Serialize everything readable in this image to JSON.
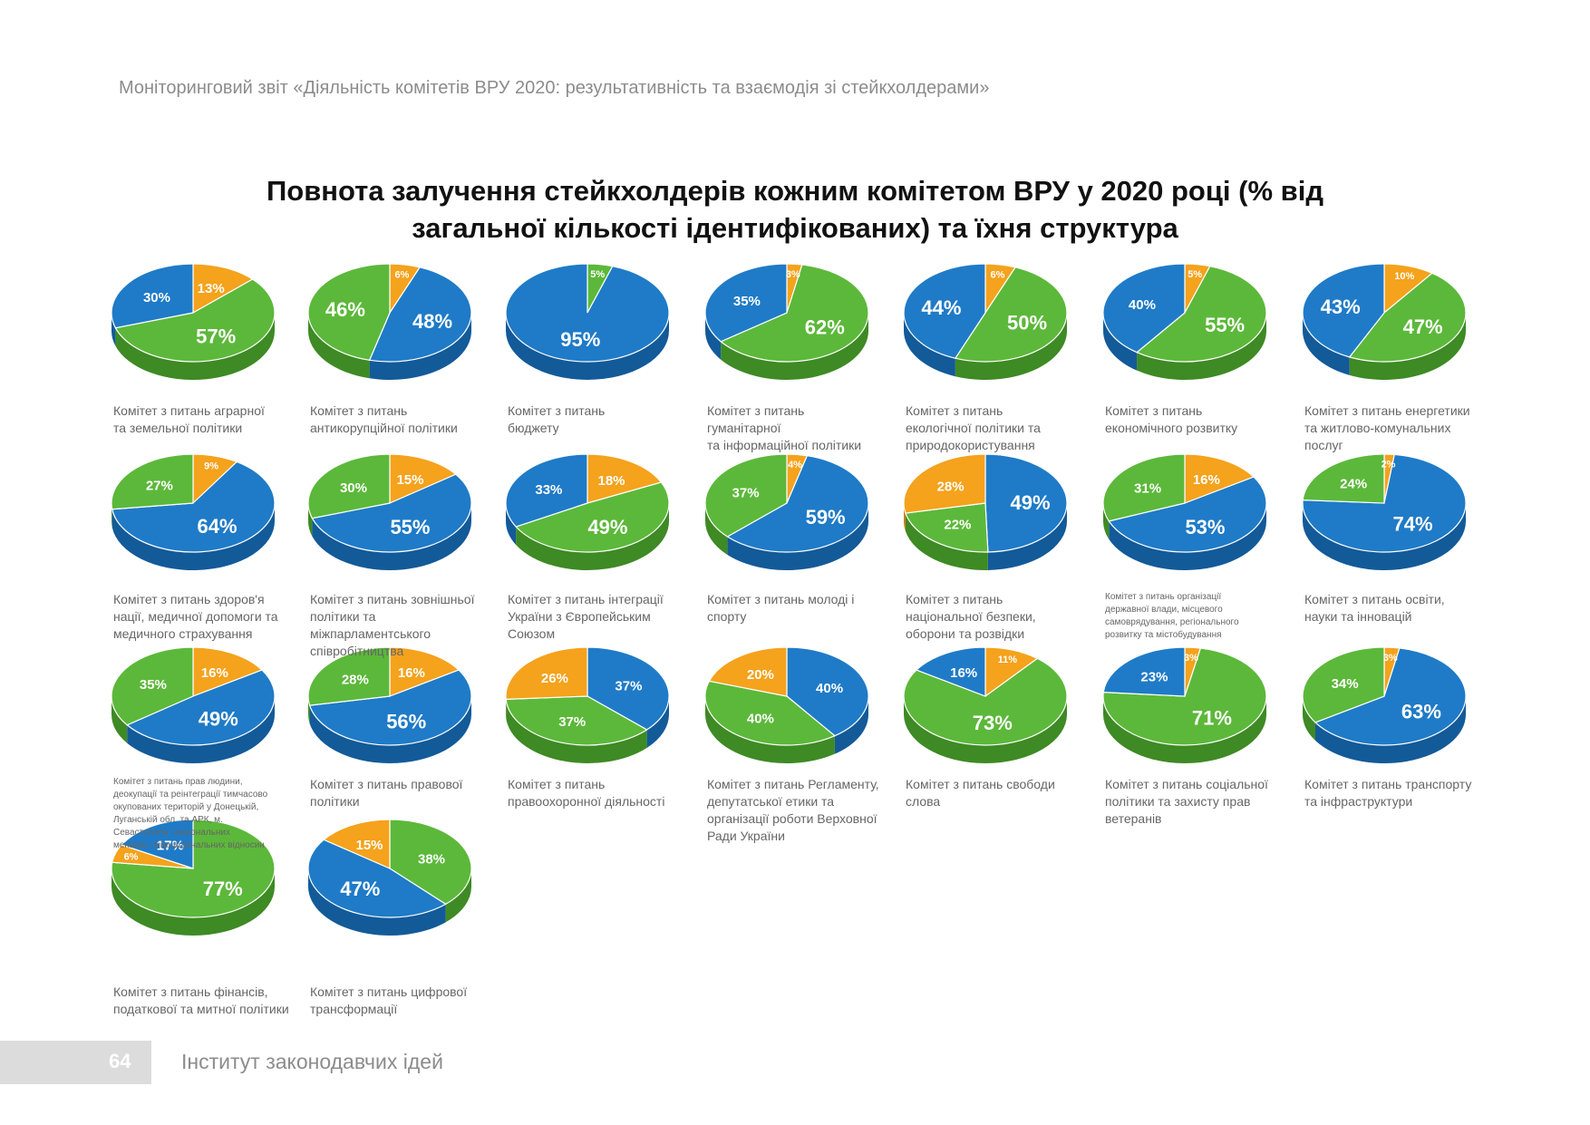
{
  "header": "Моніторинговий звіт «Діяльність комітетів ВРУ 2020: результативність та взаємодія зі стейкхолдерами»",
  "title_lines": [
    "Повнота залучення стейкхолдерів кожним комітетом ВРУ у 2020 році (% від",
    "загальної кількості ідентифікованих) та їхня структура"
  ],
  "colors": {
    "green": "#5cb83a",
    "blue": "#1f7bc7",
    "orange": "#f5a21c"
  },
  "footer": {
    "page_number": "64",
    "text": "Інститут законодавчих ідей"
  },
  "chart_data": [
    {
      "type": "pie",
      "caption": [
        "Комітет з питань аграрної",
        "та земельної політики"
      ],
      "slices": [
        {
          "color": "orange",
          "value": 13,
          "label": "13%"
        },
        {
          "color": "green",
          "value": 57,
          "label": "57%"
        },
        {
          "color": "blue",
          "value": 30,
          "label": "30%"
        }
      ]
    },
    {
      "type": "pie",
      "caption": [
        "Комітет з питань",
        "антикорупційної політики"
      ],
      "slices": [
        {
          "color": "orange",
          "value": 6,
          "label": "6%"
        },
        {
          "color": "blue",
          "value": 48,
          "label": "48%"
        },
        {
          "color": "green",
          "value": 46,
          "label": "46%"
        }
      ]
    },
    {
      "type": "pie",
      "caption": [
        "Комітет з питань",
        "бюджету"
      ],
      "slices": [
        {
          "color": "green",
          "value": 5,
          "label": "5%"
        },
        {
          "color": "blue",
          "value": 95,
          "label": "95%"
        }
      ]
    },
    {
      "type": "pie",
      "caption": [
        "Комітет з питань",
        "гуманітарної",
        "та інформаційної політики"
      ],
      "slices": [
        {
          "color": "orange",
          "value": 3,
          "label": "3%"
        },
        {
          "color": "green",
          "value": 62,
          "label": "62%"
        },
        {
          "color": "blue",
          "value": 35,
          "label": "35%"
        }
      ]
    },
    {
      "type": "pie",
      "caption": [
        "Комітет з питань",
        "екологічної політики та",
        "природокористування"
      ],
      "slices": [
        {
          "color": "orange",
          "value": 6,
          "label": "6%"
        },
        {
          "color": "green",
          "value": 50,
          "label": "50%"
        },
        {
          "color": "blue",
          "value": 44,
          "label": "44%"
        }
      ]
    },
    {
      "type": "pie",
      "caption": [
        "Комітет з питань",
        "економічного розвитку"
      ],
      "slices": [
        {
          "color": "orange",
          "value": 5,
          "label": "5%"
        },
        {
          "color": "green",
          "value": 55,
          "label": "55%"
        },
        {
          "color": "blue",
          "value": 40,
          "label": "40%"
        }
      ]
    },
    {
      "type": "pie",
      "caption": [
        "Комітет з питань енергетики",
        "та житлово-комунальних",
        "послуг"
      ],
      "slices": [
        {
          "color": "orange",
          "value": 10,
          "label": "10%"
        },
        {
          "color": "green",
          "value": 47,
          "label": "47%"
        },
        {
          "color": "blue",
          "value": 43,
          "label": "43%"
        }
      ]
    },
    {
      "type": "pie",
      "caption": [
        "Комітет з питань здоров'я",
        "нації, медичної допомоги та",
        "медичного страхування"
      ],
      "slices": [
        {
          "color": "orange",
          "value": 9,
          "label": "9%"
        },
        {
          "color": "blue",
          "value": 64,
          "label": "64%"
        },
        {
          "color": "green",
          "value": 27,
          "label": "27%"
        }
      ]
    },
    {
      "type": "pie",
      "caption": [
        "Комітет з питань зовнішньої",
        "політики та",
        "міжпарламентського",
        "співробітництва"
      ],
      "slices": [
        {
          "color": "orange",
          "value": 15,
          "label": "15%"
        },
        {
          "color": "blue",
          "value": 55,
          "label": "55%"
        },
        {
          "color": "green",
          "value": 30,
          "label": "30%"
        }
      ]
    },
    {
      "type": "pie",
      "caption": [
        "Комітет з питань інтеграції",
        "України з Європейським",
        "Союзом"
      ],
      "slices": [
        {
          "color": "orange",
          "value": 18,
          "label": "18%"
        },
        {
          "color": "green",
          "value": 49,
          "label": "49%"
        },
        {
          "color": "blue",
          "value": 33,
          "label": "33%"
        }
      ]
    },
    {
      "type": "pie",
      "caption": [
        "Комітет з питань молоді і",
        "спорту"
      ],
      "slices": [
        {
          "color": "orange",
          "value": 4,
          "label": "4%"
        },
        {
          "color": "blue",
          "value": 59,
          "label": "59%"
        },
        {
          "color": "green",
          "value": 37,
          "label": "37%"
        }
      ]
    },
    {
      "type": "pie",
      "caption": [
        "Комітет з питань",
        "національної безпеки,",
        "оборони та розвідки"
      ],
      "slices": [
        {
          "color": "blue",
          "value": 49,
          "label": "49%"
        },
        {
          "color": "green",
          "value": 22,
          "label": "22%"
        },
        {
          "color": "orange",
          "value": 28,
          "label": "28%"
        }
      ]
    },
    {
      "type": "pie",
      "small_caption": true,
      "caption": [
        "Комітет з питань організації",
        "державної влади, місцевого",
        "самоврядування, регіонального",
        "розвитку та містобудування"
      ],
      "slices": [
        {
          "color": "orange",
          "value": 16,
          "label": "16%"
        },
        {
          "color": "blue",
          "value": 53,
          "label": "53%"
        },
        {
          "color": "green",
          "value": 31,
          "label": "31%"
        }
      ]
    },
    {
      "type": "pie",
      "caption": [
        "Комітет з питань освіти,",
        "науки та інновацій"
      ],
      "slices": [
        {
          "color": "orange",
          "value": 2,
          "label": "2%"
        },
        {
          "color": "blue",
          "value": 74,
          "label": "74%"
        },
        {
          "color": "green",
          "value": 24,
          "label": "24%"
        }
      ]
    },
    {
      "type": "pie",
      "small_caption": true,
      "caption": [
        "Комітет з питань прав людини,",
        "деокупації та реінтеграції тимчасово",
        "окупованих територій у Донецькій,",
        "Луганській обл. та АРК, м.",
        "Севастополя, національних",
        "меншин і міжнаціональних відносин"
      ],
      "slices": [
        {
          "color": "orange",
          "value": 16,
          "label": "16%"
        },
        {
          "color": "blue",
          "value": 49,
          "label": "49%"
        },
        {
          "color": "green",
          "value": 35,
          "label": "35%"
        }
      ]
    },
    {
      "type": "pie",
      "caption": [
        "Комітет з питань правової",
        "політики"
      ],
      "slices": [
        {
          "color": "orange",
          "value": 16,
          "label": "16%"
        },
        {
          "color": "blue",
          "value": 56,
          "label": "56%"
        },
        {
          "color": "green",
          "value": 28,
          "label": "28%"
        }
      ]
    },
    {
      "type": "pie",
      "caption": [
        "Комітет з питань",
        "правоохоронної діяльності"
      ],
      "slices": [
        {
          "color": "blue",
          "value": 37,
          "label": "37%"
        },
        {
          "color": "green",
          "value": 37,
          "label": "37%"
        },
        {
          "color": "orange",
          "value": 26,
          "label": "26%"
        }
      ]
    },
    {
      "type": "pie",
      "caption": [
        "Комітет з питань Регламенту,",
        "депутатської етики та",
        "організації роботи Верховної",
        "Ради України"
      ],
      "slices": [
        {
          "color": "blue",
          "value": 40,
          "label": "40%"
        },
        {
          "color": "green",
          "value": 40,
          "label": "40%"
        },
        {
          "color": "orange",
          "value": 20,
          "label": "20%"
        }
      ]
    },
    {
      "type": "pie",
      "caption": [
        "Комітет з питань свободи",
        "слова"
      ],
      "slices": [
        {
          "color": "orange",
          "value": 11,
          "label": "11%"
        },
        {
          "color": "green",
          "value": 73,
          "label": "73%"
        },
        {
          "color": "blue",
          "value": 16,
          "label": "16%"
        }
      ]
    },
    {
      "type": "pie",
      "caption": [
        "Комітет з питань соціальної",
        "політики та захисту прав",
        "ветеранів"
      ],
      "slices": [
        {
          "color": "orange",
          "value": 3,
          "label": "3%"
        },
        {
          "color": "green",
          "value": 71,
          "label": "71%"
        },
        {
          "color": "blue",
          "value": 23,
          "label": "23%"
        }
      ]
    },
    {
      "type": "pie",
      "caption": [
        "Комітет з питань транспорту",
        "та інфраструктури"
      ],
      "slices": [
        {
          "color": "orange",
          "value": 3,
          "label": "3%"
        },
        {
          "color": "blue",
          "value": 63,
          "label": "63%"
        },
        {
          "color": "green",
          "value": 34,
          "label": "34%"
        }
      ]
    },
    {
      "type": "pie",
      "caption": [
        "Комітет з питань фінансів,",
        "податкової та митної політики"
      ],
      "slices": [
        {
          "color": "green",
          "value": 77,
          "label": "77%"
        },
        {
          "color": "orange",
          "value": 6,
          "label": "6%"
        },
        {
          "color": "blue",
          "value": 17,
          "label": "17%"
        }
      ]
    },
    {
      "type": "pie",
      "caption": [
        "Комітет з питань цифрової",
        "трансформації"
      ],
      "slices": [
        {
          "color": "green",
          "value": 38,
          "label": "38%"
        },
        {
          "color": "blue",
          "value": 47,
          "label": "47%"
        },
        {
          "color": "orange",
          "value": 15,
          "label": "15%"
        }
      ]
    }
  ]
}
